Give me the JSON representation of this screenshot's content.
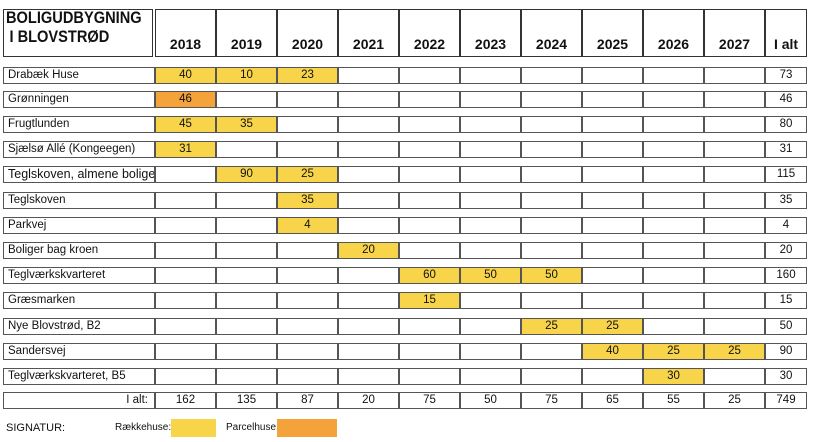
{
  "title_line1": "BOLIGUDBYGNING",
  "title_line2": "I BLOVSTRØD",
  "years": [
    "2018",
    "2019",
    "2020",
    "2021",
    "2022",
    "2023",
    "2024",
    "2025",
    "2026",
    "2027"
  ],
  "total_header": "I alt",
  "colors": {
    "rakkehuse": "#f7d44a",
    "parcelhuse": "#f4a23a"
  },
  "rows": [
    {
      "name": "Drabæk Huse",
      "cells": [
        [
          "40",
          "y"
        ],
        [
          "10",
          "y"
        ],
        [
          "23",
          "y"
        ],
        [
          "",
          ""
        ],
        [
          "",
          ""
        ],
        [
          "",
          ""
        ],
        [
          "",
          ""
        ],
        [
          "",
          ""
        ],
        [
          "",
          ""
        ],
        [
          "",
          ""
        ]
      ],
      "total": "73"
    },
    {
      "name": "Grønningen",
      "cells": [
        [
          "46",
          "o"
        ],
        [
          "",
          ""
        ],
        [
          "",
          ""
        ],
        [
          "",
          ""
        ],
        [
          "",
          ""
        ],
        [
          "",
          ""
        ],
        [
          "",
          ""
        ],
        [
          "",
          ""
        ],
        [
          "",
          ""
        ],
        [
          "",
          ""
        ]
      ],
      "total": "46"
    },
    {
      "name": "Frugtlunden",
      "cells": [
        [
          "45",
          "y"
        ],
        [
          "35",
          "y"
        ],
        [
          "",
          ""
        ],
        [
          "",
          ""
        ],
        [
          "",
          ""
        ],
        [
          "",
          ""
        ],
        [
          "",
          ""
        ],
        [
          "",
          ""
        ],
        [
          "",
          ""
        ],
        [
          "",
          ""
        ]
      ],
      "total": "80"
    },
    {
      "name": "Sjælsø Allé (Kongeegen)",
      "cells": [
        [
          "31",
          "y"
        ],
        [
          "",
          ""
        ],
        [
          "",
          ""
        ],
        [
          "",
          ""
        ],
        [
          "",
          ""
        ],
        [
          "",
          ""
        ],
        [
          "",
          ""
        ],
        [
          "",
          ""
        ],
        [
          "",
          ""
        ],
        [
          "",
          ""
        ]
      ],
      "total": "31"
    },
    {
      "name": "Teglskoven, almene boliger",
      "cells": [
        [
          "",
          ""
        ],
        [
          "90",
          "y"
        ],
        [
          "25",
          "y"
        ],
        [
          "",
          ""
        ],
        [
          "",
          ""
        ],
        [
          "",
          ""
        ],
        [
          "",
          ""
        ],
        [
          "",
          ""
        ],
        [
          "",
          ""
        ],
        [
          "",
          ""
        ]
      ],
      "total": "115"
    },
    {
      "name": "Teglskoven",
      "cells": [
        [
          "",
          ""
        ],
        [
          "",
          ""
        ],
        [
          "35",
          "y"
        ],
        [
          "",
          ""
        ],
        [
          "",
          ""
        ],
        [
          "",
          ""
        ],
        [
          "",
          ""
        ],
        [
          "",
          ""
        ],
        [
          "",
          ""
        ],
        [
          "",
          ""
        ]
      ],
      "total": "35"
    },
    {
      "name": "Parkvej",
      "cells": [
        [
          "",
          ""
        ],
        [
          "",
          ""
        ],
        [
          "4",
          "y"
        ],
        [
          "",
          ""
        ],
        [
          "",
          ""
        ],
        [
          "",
          ""
        ],
        [
          "",
          ""
        ],
        [
          "",
          ""
        ],
        [
          "",
          ""
        ],
        [
          "",
          ""
        ]
      ],
      "total": "4"
    },
    {
      "name": "Boliger bag kroen",
      "cells": [
        [
          "",
          ""
        ],
        [
          "",
          ""
        ],
        [
          "",
          ""
        ],
        [
          "20",
          "y"
        ],
        [
          "",
          ""
        ],
        [
          "",
          ""
        ],
        [
          "",
          ""
        ],
        [
          "",
          ""
        ],
        [
          "",
          ""
        ],
        [
          "",
          ""
        ]
      ],
      "total": "20"
    },
    {
      "name": "Teglværkskvarteret",
      "cells": [
        [
          "",
          ""
        ],
        [
          "",
          ""
        ],
        [
          "",
          ""
        ],
        [
          "",
          ""
        ],
        [
          "60",
          "y"
        ],
        [
          "50",
          "y"
        ],
        [
          "50",
          "y"
        ],
        [
          "",
          ""
        ],
        [
          "",
          ""
        ],
        [
          "",
          ""
        ]
      ],
      "total": "160"
    },
    {
      "name": "Græsmarken",
      "cells": [
        [
          "",
          ""
        ],
        [
          "",
          ""
        ],
        [
          "",
          ""
        ],
        [
          "",
          ""
        ],
        [
          "15",
          "y"
        ],
        [
          "",
          ""
        ],
        [
          "",
          ""
        ],
        [
          "",
          ""
        ],
        [
          "",
          ""
        ],
        [
          "",
          ""
        ]
      ],
      "total": "15"
    },
    {
      "name": "Nye Blovstrød, B2",
      "cells": [
        [
          "",
          ""
        ],
        [
          "",
          ""
        ],
        [
          "",
          ""
        ],
        [
          "",
          ""
        ],
        [
          "",
          ""
        ],
        [
          "",
          ""
        ],
        [
          "25",
          "y"
        ],
        [
          "25",
          "y"
        ],
        [
          "",
          ""
        ],
        [
          "",
          ""
        ]
      ],
      "total": "50"
    },
    {
      "name": "Sandersvej",
      "cells": [
        [
          "",
          ""
        ],
        [
          "",
          ""
        ],
        [
          "",
          ""
        ],
        [
          "",
          ""
        ],
        [
          "",
          ""
        ],
        [
          "",
          ""
        ],
        [
          "",
          ""
        ],
        [
          "40",
          "y"
        ],
        [
          "25",
          "y"
        ],
        [
          "25",
          "y"
        ]
      ],
      "total": "90"
    },
    {
      "name": "Teglværkskvarteret, B5",
      "cells": [
        [
          "",
          ""
        ],
        [
          "",
          ""
        ],
        [
          "",
          ""
        ],
        [
          "",
          ""
        ],
        [
          "",
          ""
        ],
        [
          "",
          ""
        ],
        [
          "",
          ""
        ],
        [
          "",
          ""
        ],
        [
          "30",
          "y"
        ],
        [
          "",
          ""
        ]
      ],
      "total": "30"
    }
  ],
  "sum_label": "I alt:",
  "sums": [
    "162",
    "135",
    "87",
    "20",
    "75",
    "50",
    "75",
    "65",
    "55",
    "25"
  ],
  "grand_total": "749",
  "legend": {
    "signatur": "SIGNATUR:",
    "rakkehuse": "Rækkehuse:",
    "parcelhuse": "Parcelhuse:"
  }
}
